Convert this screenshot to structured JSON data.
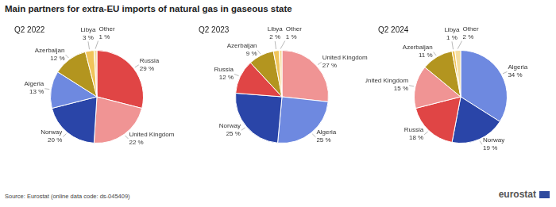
{
  "title": "Main partners for extra-EU imports of natural gas in gaseous state",
  "source": "Source: Eurostat (online data code: ds-045409)",
  "logo": "eurostat",
  "chart_data": [
    {
      "type": "pie",
      "title": "Q2 2022",
      "categories": [
        "Russia",
        "United Kingdom",
        "Norway",
        "Algeria",
        "Azerbaijan",
        "Libya",
        "Other"
      ],
      "values": [
        29,
        22,
        20,
        13,
        12,
        3,
        1
      ],
      "value_labels": [
        "29 %",
        "22 %",
        "20 %",
        "13 %",
        "12 %",
        "3 %",
        "1 %"
      ],
      "colors": [
        "#e04545",
        "#f09494",
        "#2a45a8",
        "#6e89e0",
        "#b3951f",
        "#f0c45a",
        "#f5dea0"
      ],
      "data_labels": true
    },
    {
      "type": "pie",
      "title": "Q2 2023",
      "categories": [
        "United Kingdom",
        "Algeria",
        "Norway",
        "Russia",
        "Azerbaijan",
        "Libya",
        "Other"
      ],
      "values": [
        27,
        25,
        25,
        12,
        9,
        2,
        1
      ],
      "value_labels": [
        "27 %",
        "25 %",
        "25 %",
        "12 %",
        "9 %",
        "2 %",
        "1 %"
      ],
      "colors": [
        "#f09494",
        "#6e89e0",
        "#2a45a8",
        "#e04545",
        "#b3951f",
        "#f0c45a",
        "#f5dea0"
      ],
      "data_labels": true
    },
    {
      "type": "pie",
      "title": "Q2 2024",
      "categories": [
        "Algeria",
        "Norway",
        "Russia",
        "United Kingdom",
        "Azerbaijan",
        "Libya",
        "Other"
      ],
      "values": [
        34,
        19,
        18,
        15,
        11,
        1,
        2
      ],
      "value_labels": [
        "34 %",
        "19 %",
        "18 %",
        "15 %",
        "11 %",
        "1 %",
        "2 %"
      ],
      "colors": [
        "#6e89e0",
        "#2a45a8",
        "#e04545",
        "#f09494",
        "#b3951f",
        "#f0c45a",
        "#f5dea0"
      ],
      "data_labels": true
    }
  ]
}
